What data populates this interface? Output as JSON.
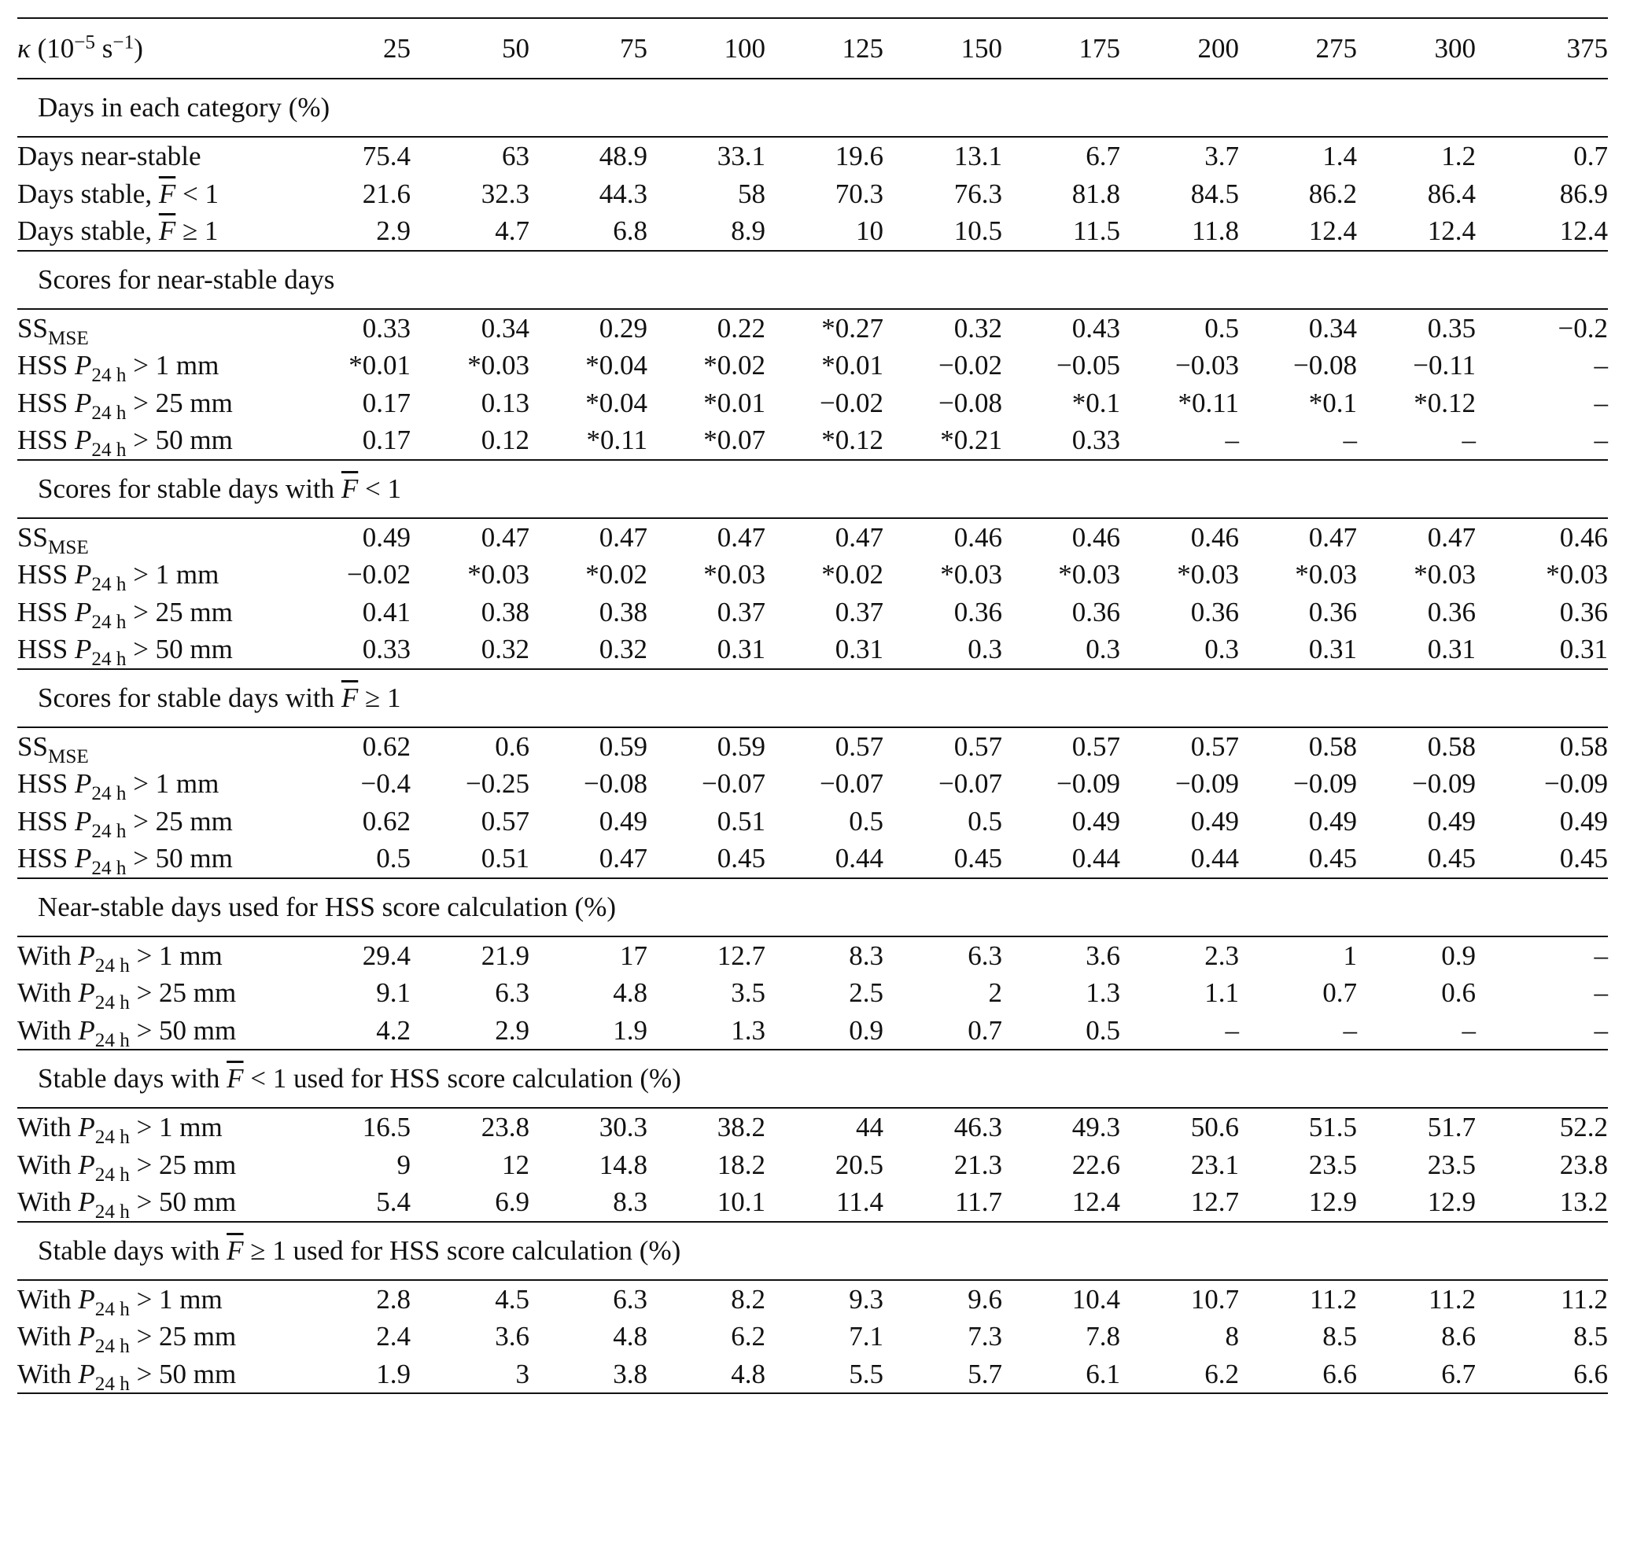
{
  "header": {
    "kappa_symbol": "κ",
    "kappa_unit_pre": "(10",
    "kappa_exp1": "−5",
    "kappa_mid": " s",
    "kappa_exp2": "−1",
    "kappa_unit_post": ")",
    "columns": [
      "25",
      "50",
      "75",
      "100",
      "125",
      "150",
      "175",
      "200",
      "275",
      "300",
      "375"
    ]
  },
  "labels": {
    "days_near_stable": "Days near-stable",
    "days_stable": "Days stable,",
    "F": "F",
    "lt1": " < 1",
    "ge1": " ≥ 1",
    "ss": "SS",
    "mse": "MSE",
    "hss": "HSS ",
    "with": "With ",
    "P": "P",
    "sub24h": "24 h",
    "gt1": " > 1 mm",
    "gt25": " > 25 mm",
    "gt50": " > 50 mm"
  },
  "sections": {
    "days_category": "Days in each category (%)",
    "near_stable_scores": "Scores for near-stable days",
    "stable_lt1_scores_pre": "Scores for stable days with",
    "stable_ge1_scores_pre": "Scores for stable days with",
    "near_stable_used": "Near-stable days used for HSS score calculation (%)",
    "stable_used_pre": "Stable days with",
    "stable_used_post": "used for HSS score calculation (%)"
  },
  "rows": {
    "days_near_stable": [
      "75.4",
      "63",
      "48.9",
      "33.1",
      "19.6",
      "13.1",
      "6.7",
      "3.7",
      "1.4",
      "1.2",
      "0.7"
    ],
    "days_stable_lt1": [
      "21.6",
      "32.3",
      "44.3",
      "58",
      "70.3",
      "76.3",
      "81.8",
      "84.5",
      "86.2",
      "86.4",
      "86.9"
    ],
    "days_stable_ge1": [
      "2.9",
      "4.7",
      "6.8",
      "8.9",
      "10",
      "10.5",
      "11.5",
      "11.8",
      "12.4",
      "12.4",
      "12.4"
    ],
    "ns_ss": [
      "0.33",
      "0.34",
      "0.29",
      "0.22",
      "*0.27",
      "0.32",
      "0.43",
      "0.5",
      "0.34",
      "0.35",
      "−0.2"
    ],
    "ns_hss1": [
      "*0.01",
      "*0.03",
      "*0.04",
      "*0.02",
      "*0.01",
      "−0.02",
      "−0.05",
      "−0.03",
      "−0.08",
      "−0.11",
      "–"
    ],
    "ns_hss25": [
      "0.17",
      "0.13",
      "*0.04",
      "*0.01",
      "−0.02",
      "−0.08",
      "*0.1",
      "*0.11",
      "*0.1",
      "*0.12",
      "–"
    ],
    "ns_hss50": [
      "0.17",
      "0.12",
      "*0.11",
      "*0.07",
      "*0.12",
      "*0.21",
      "0.33",
      "–",
      "–",
      "–",
      "–"
    ],
    "lt_ss": [
      "0.49",
      "0.47",
      "0.47",
      "0.47",
      "0.47",
      "0.46",
      "0.46",
      "0.46",
      "0.47",
      "0.47",
      "0.46"
    ],
    "lt_hss1": [
      "−0.02",
      "*0.03",
      "*0.02",
      "*0.03",
      "*0.02",
      "*0.03",
      "*0.03",
      "*0.03",
      "*0.03",
      "*0.03",
      "*0.03"
    ],
    "lt_hss25": [
      "0.41",
      "0.38",
      "0.38",
      "0.37",
      "0.37",
      "0.36",
      "0.36",
      "0.36",
      "0.36",
      "0.36",
      "0.36"
    ],
    "lt_hss50": [
      "0.33",
      "0.32",
      "0.32",
      "0.31",
      "0.31",
      "0.3",
      "0.3",
      "0.3",
      "0.31",
      "0.31",
      "0.31"
    ],
    "ge_ss": [
      "0.62",
      "0.6",
      "0.59",
      "0.59",
      "0.57",
      "0.57",
      "0.57",
      "0.57",
      "0.58",
      "0.58",
      "0.58"
    ],
    "ge_hss1": [
      "−0.4",
      "−0.25",
      "−0.08",
      "−0.07",
      "−0.07",
      "−0.07",
      "−0.09",
      "−0.09",
      "−0.09",
      "−0.09",
      "−0.09"
    ],
    "ge_hss25": [
      "0.62",
      "0.57",
      "0.49",
      "0.51",
      "0.5",
      "0.5",
      "0.49",
      "0.49",
      "0.49",
      "0.49",
      "0.49"
    ],
    "ge_hss50": [
      "0.5",
      "0.51",
      "0.47",
      "0.45",
      "0.44",
      "0.45",
      "0.44",
      "0.44",
      "0.45",
      "0.45",
      "0.45"
    ],
    "nsu_1": [
      "29.4",
      "21.9",
      "17",
      "12.7",
      "8.3",
      "6.3",
      "3.6",
      "2.3",
      "1",
      "0.9",
      "–"
    ],
    "nsu_25": [
      "9.1",
      "6.3",
      "4.8",
      "3.5",
      "2.5",
      "2",
      "1.3",
      "1.1",
      "0.7",
      "0.6",
      "–"
    ],
    "nsu_50": [
      "4.2",
      "2.9",
      "1.9",
      "1.3",
      "0.9",
      "0.7",
      "0.5",
      "–",
      "–",
      "–",
      "–"
    ],
    "ltu_1": [
      "16.5",
      "23.8",
      "30.3",
      "38.2",
      "44",
      "46.3",
      "49.3",
      "50.6",
      "51.5",
      "51.7",
      "52.2"
    ],
    "ltu_25": [
      "9",
      "12",
      "14.8",
      "18.2",
      "20.5",
      "21.3",
      "22.6",
      "23.1",
      "23.5",
      "23.5",
      "23.8"
    ],
    "ltu_50": [
      "5.4",
      "6.9",
      "8.3",
      "10.1",
      "11.4",
      "11.7",
      "12.4",
      "12.7",
      "12.9",
      "12.9",
      "13.2"
    ],
    "geu_1": [
      "2.8",
      "4.5",
      "6.3",
      "8.2",
      "9.3",
      "9.6",
      "10.4",
      "10.7",
      "11.2",
      "11.2",
      "11.2"
    ],
    "geu_25": [
      "2.4",
      "3.6",
      "4.8",
      "6.2",
      "7.1",
      "7.3",
      "7.8",
      "8",
      "8.5",
      "8.6",
      "8.5"
    ],
    "geu_50": [
      "1.9",
      "3",
      "3.8",
      "4.8",
      "5.5",
      "5.7",
      "6.1",
      "6.2",
      "6.6",
      "6.7",
      "6.6"
    ]
  }
}
